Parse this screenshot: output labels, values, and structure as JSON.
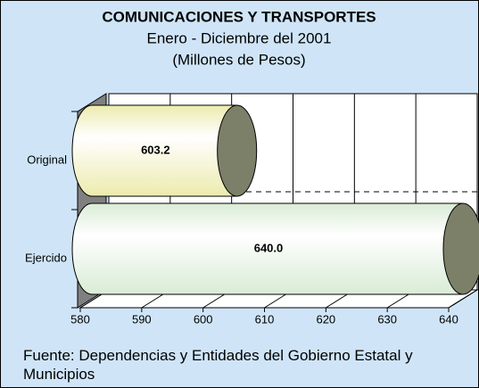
{
  "chart_data": {
    "type": "bar",
    "orientation": "horizontal",
    "title": "COMUNICACIONES Y TRANSPORTES",
    "subtitle": [
      "Enero - Diciembre del 2001",
      "(Millones de Pesos)"
    ],
    "categories": [
      "Original",
      "Ejercido"
    ],
    "values": [
      603.2,
      640.0
    ],
    "value_labels": [
      "603.2",
      "640.0"
    ],
    "colors": [
      "#ecebae",
      "#d9ecd6"
    ],
    "xlim": [
      580,
      640
    ],
    "xticks": [
      580,
      590,
      600,
      610,
      620,
      630,
      640
    ],
    "grid": true,
    "source": "Fuente: Dependencias y Entidades del Gobierno Estatal y Municipios"
  }
}
